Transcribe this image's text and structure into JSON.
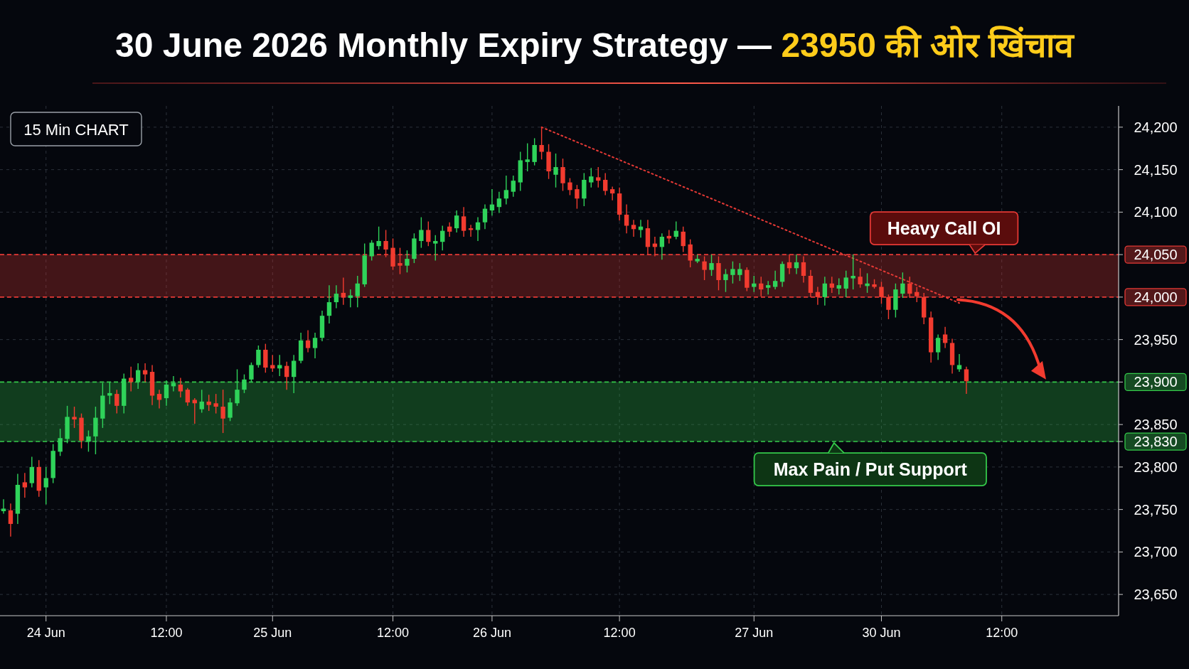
{
  "chart_data": {
    "type": "candlestick",
    "title": "30 June 2026 Monthly Expiry Strategy — 23950 की ओर खिंचाव",
    "annotations": [
      "15 Min CHART"
    ],
    "categories": [
      null,
      null,
      null,
      null,
      null,
      null,
      "24 Jun",
      null,
      null,
      null,
      null,
      null,
      null,
      null,
      null,
      null,
      null,
      null,
      null,
      null,
      null,
      null,
      null,
      "12:00",
      null,
      null,
      null,
      null,
      null,
      null,
      null,
      null,
      null,
      null,
      null,
      null,
      null,
      null,
      "25 Jun",
      null,
      null,
      null,
      null,
      null,
      null,
      null,
      null,
      null,
      null,
      null,
      null,
      null,
      null,
      null,
      null,
      "12:00",
      null,
      null,
      null,
      null,
      null,
      null,
      null,
      null,
      null,
      null,
      null,
      null,
      null,
      "26 Jun",
      null,
      null,
      null,
      null,
      null,
      null,
      null,
      null,
      null,
      null,
      null,
      null,
      null,
      null,
      null,
      null,
      null,
      "12:00",
      null,
      null,
      null,
      null,
      null,
      null,
      null,
      null,
      null,
      null,
      null,
      null,
      null,
      null,
      null,
      null,
      null,
      null,
      "27 Jun",
      null,
      null,
      null,
      null,
      null,
      null,
      null,
      null,
      null,
      null,
      null,
      null,
      null,
      null,
      null,
      null,
      null,
      "30 Jun",
      null,
      null,
      null,
      null,
      null,
      null,
      null,
      null,
      null,
      null,
      null,
      null,
      null,
      null,
      null,
      null,
      "12:00",
      null,
      null,
      null,
      null,
      null,
      null,
      null,
      null,
      null,
      null,
      null,
      null,
      null,
      null,
      null,
      null
    ],
    "ohlc": [
      [
        23748,
        23762,
        23745,
        23751
      ],
      [
        23749,
        23757,
        23718,
        23733
      ],
      [
        23745,
        23792,
        23733,
        23779
      ],
      [
        23782,
        23793,
        23764,
        23776
      ],
      [
        23781,
        23812,
        23776,
        23800
      ],
      [
        23800,
        23808,
        23765,
        23772
      ],
      [
        23776,
        23800,
        23756,
        23787
      ],
      [
        23787,
        23827,
        23781,
        23819
      ],
      [
        23818,
        23845,
        23813,
        23834
      ],
      [
        23833,
        23872,
        23828,
        23859
      ],
      [
        23859,
        23871,
        23846,
        23856
      ],
      [
        23858,
        23863,
        23822,
        23831
      ],
      [
        23830,
        23843,
        23818,
        23836
      ],
      [
        23836,
        23871,
        23815,
        23858
      ],
      [
        23857,
        23899,
        23846,
        23884
      ],
      [
        23884,
        23900,
        23874,
        23887
      ],
      [
        23886,
        23891,
        23863,
        23872
      ],
      [
        23872,
        23910,
        23863,
        23904
      ],
      [
        23905,
        23918,
        23889,
        23900
      ],
      [
        23900,
        23922,
        23892,
        23914
      ],
      [
        23914,
        23922,
        23900,
        23909
      ],
      [
        23912,
        23920,
        23873,
        23884
      ],
      [
        23886,
        23891,
        23869,
        23879
      ],
      [
        23881,
        23902,
        23872,
        23897
      ],
      [
        23895,
        23907,
        23889,
        23899
      ],
      [
        23897,
        23905,
        23882,
        23889
      ],
      [
        23891,
        23893,
        23872,
        23876
      ],
      [
        23879,
        23881,
        23851,
        23875
      ],
      [
        23868,
        23891,
        23864,
        23877
      ],
      [
        23877,
        23885,
        23866,
        23873
      ],
      [
        23875,
        23886,
        23863,
        23871
      ],
      [
        23871,
        23891,
        23840,
        23857
      ],
      [
        23858,
        23881,
        23854,
        23876
      ],
      [
        23875,
        23915,
        23872,
        23891
      ],
      [
        23891,
        23909,
        23887,
        23903
      ],
      [
        23903,
        23923,
        23900,
        23920
      ],
      [
        23920,
        23943,
        23917,
        23938
      ],
      [
        23938,
        23945,
        23911,
        23917
      ],
      [
        23920,
        23932,
        23912,
        23916
      ],
      [
        23916,
        23932,
        23907,
        23920
      ],
      [
        23919,
        23924,
        23891,
        23906
      ],
      [
        23906,
        23932,
        23887,
        23925
      ],
      [
        23925,
        23958,
        23922,
        23949
      ],
      [
        23949,
        23961,
        23935,
        23940
      ],
      [
        23940,
        23958,
        23928,
        23952
      ],
      [
        23952,
        23984,
        23948,
        23978
      ],
      [
        23978,
        24014,
        23969,
        23994
      ],
      [
        23994,
        24014,
        23987,
        24004
      ],
      [
        24005,
        24023,
        23991,
        24000
      ],
      [
        23999,
        24009,
        23988,
        24002
      ],
      [
        24001,
        24025,
        23988,
        24016
      ],
      [
        24015,
        24063,
        24012,
        24049
      ],
      [
        24048,
        24067,
        24043,
        24064
      ],
      [
        24060,
        24083,
        24056,
        24066
      ],
      [
        24066,
        24079,
        24047,
        24056
      ],
      [
        24058,
        24069,
        24032,
        24036
      ],
      [
        24040,
        24058,
        24027,
        24037
      ],
      [
        24037,
        24055,
        24029,
        24045
      ],
      [
        24045,
        24075,
        24040,
        24069
      ],
      [
        24066,
        24094,
        24058,
        24079
      ],
      [
        24079,
        24089,
        24060,
        24065
      ],
      [
        24063,
        24073,
        24043,
        24066
      ],
      [
        24065,
        24084,
        24055,
        24078
      ],
      [
        24083,
        24088,
        24071,
        24077
      ],
      [
        24081,
        24102,
        24076,
        24096
      ],
      [
        24095,
        24106,
        24071,
        24078
      ],
      [
        24081,
        24085,
        24071,
        24079
      ],
      [
        24079,
        24094,
        24066,
        24088
      ],
      [
        24088,
        24109,
        24080,
        24104
      ],
      [
        24102,
        24127,
        24096,
        24109
      ],
      [
        24106,
        24124,
        24099,
        24116
      ],
      [
        24116,
        24143,
        24109,
        24126
      ],
      [
        24124,
        24143,
        24118,
        24137
      ],
      [
        24135,
        24171,
        24125,
        24161
      ],
      [
        24159,
        24181,
        24148,
        24162
      ],
      [
        24159,
        24187,
        24155,
        24179
      ],
      [
        24179,
        24200,
        24162,
        24171
      ],
      [
        24171,
        24180,
        24139,
        24148
      ],
      [
        24144,
        24169,
        24129,
        24153
      ],
      [
        24153,
        24163,
        24125,
        24134
      ],
      [
        24135,
        24140,
        24120,
        24126
      ],
      [
        24127,
        24132,
        24104,
        24116
      ],
      [
        24116,
        24146,
        24107,
        24138
      ],
      [
        24135,
        24152,
        24129,
        24142
      ],
      [
        24141,
        24153,
        24129,
        24137
      ],
      [
        24138,
        24146,
        24120,
        24125
      ],
      [
        24127,
        24130,
        24114,
        24122
      ],
      [
        24122,
        24129,
        24090,
        24097
      ],
      [
        24097,
        24109,
        24075,
        24084
      ],
      [
        24085,
        24091,
        24071,
        24080
      ],
      [
        24079,
        24091,
        24070,
        24083
      ],
      [
        24081,
        24091,
        24050,
        24059
      ],
      [
        24063,
        24071,
        24048,
        24059
      ],
      [
        24059,
        24075,
        24044,
        24071
      ],
      [
        24072,
        24079,
        24063,
        24069
      ],
      [
        24071,
        24089,
        24068,
        24078
      ],
      [
        24077,
        24083,
        24053,
        24060
      ],
      [
        24062,
        24068,
        24035,
        24043
      ],
      [
        24042,
        24050,
        24040,
        24045
      ],
      [
        24042,
        24048,
        24020,
        24032
      ],
      [
        24032,
        24050,
        24025,
        24040
      ],
      [
        24040,
        24048,
        24008,
        24020
      ],
      [
        24020,
        24033,
        24006,
        24027
      ],
      [
        24026,
        24042,
        24016,
        24033
      ],
      [
        24026,
        24040,
        24019,
        24033
      ],
      [
        24032,
        24035,
        24007,
        24011
      ],
      [
        24012,
        24025,
        24006,
        24016
      ],
      [
        24016,
        24024,
        24001,
        24009
      ],
      [
        24011,
        24019,
        24003,
        24014
      ],
      [
        24012,
        24031,
        24009,
        24019
      ],
      [
        24018,
        24042,
        24012,
        24039
      ],
      [
        24041,
        24050,
        24027,
        24034
      ],
      [
        24034,
        24050,
        24027,
        24041
      ],
      [
        24041,
        24048,
        24017,
        24025
      ],
      [
        24025,
        24032,
        24000,
        24005
      ],
      [
        24006,
        24012,
        23991,
        24000
      ],
      [
        24000,
        24024,
        23990,
        24016
      ],
      [
        24016,
        24024,
        24005,
        24011
      ],
      [
        24010,
        24022,
        24003,
        24014
      ],
      [
        24010,
        24031,
        24000,
        24023
      ],
      [
        24022,
        24050,
        24009,
        24025
      ],
      [
        24024,
        24034,
        24011,
        24015
      ],
      [
        24013,
        24028,
        24005,
        24016
      ],
      [
        24015,
        24021,
        24010,
        24012
      ],
      [
        24012,
        24018,
        23992,
        24000
      ],
      [
        24000,
        24003,
        23974,
        23985
      ],
      [
        23985,
        24016,
        23976,
        24009
      ],
      [
        24004,
        24029,
        23999,
        24016
      ],
      [
        24016,
        24024,
        23999,
        24004
      ],
      [
        24006,
        24012,
        23994,
        24001
      ],
      [
        24000,
        24005,
        23968,
        23976
      ],
      [
        23976,
        23983,
        23923,
        23935
      ],
      [
        23935,
        23956,
        23926,
        23952
      ],
      [
        23956,
        23965,
        23940,
        23946
      ],
      [
        23946,
        23951,
        23910,
        23920
      ],
      [
        23915,
        23933,
        23912,
        23920
      ],
      [
        23915,
        23918,
        23886,
        23901
      ],
      null,
      null,
      null,
      null,
      null,
      null,
      null,
      null,
      null,
      null,
      null,
      null,
      null,
      null,
      null,
      null,
      null,
      null,
      null,
      null,
      null
    ],
    "series": [
      {
        "type": "line",
        "values": [
          null,
          null,
          null,
          null,
          null,
          null,
          null,
          null,
          null,
          null,
          null,
          null,
          null,
          null,
          null,
          null,
          null,
          null,
          null,
          null,
          null,
          null,
          null,
          null,
          null,
          null,
          null,
          null,
          null,
          null,
          null,
          null,
          null,
          null,
          null,
          null,
          null,
          null,
          null,
          null,
          null,
          null,
          null,
          null,
          null,
          null,
          null,
          null,
          null,
          null,
          null,
          null,
          null,
          null,
          null,
          null,
          null,
          null,
          null,
          null,
          null,
          null,
          null,
          null,
          null,
          null,
          null,
          null,
          null,
          null,
          null,
          null,
          null,
          null,
          null,
          null,
          24200,
          null,
          null,
          null,
          null,
          null,
          null,
          null,
          null,
          null,
          null,
          null,
          null,
          null,
          null,
          null,
          null,
          null,
          null,
          null,
          null,
          null,
          null,
          null,
          null,
          null,
          null,
          null,
          null,
          null,
          null,
          null,
          null,
          null,
          null,
          null,
          null,
          null,
          null,
          null,
          null,
          null,
          null,
          null,
          null,
          null,
          null,
          null,
          null,
          null,
          null,
          null,
          null,
          null,
          null,
          null,
          null,
          null,
          null,
          23993,
          null,
          null,
          null,
          null,
          null,
          null,
          null,
          null,
          null,
          null,
          null,
          null,
          null,
          null,
          null,
          null,
          null,
          null,
          null,
          null,
          null,
          null
        ],
        "color": "#e53935",
        "line_style": "dotted"
      }
    ],
    "bands": [
      {
        "axis": "y",
        "from": 24000,
        "to": 24050,
        "label": "Heavy Call OI",
        "color": "#e53935"
      },
      {
        "axis": "y",
        "from": 23830,
        "to": 23900,
        "label": "Max Pain / Put Support",
        "color": "#34c94a"
      }
    ],
    "ylim": [
      23625,
      24225
    ],
    "yticks": [
      {
        "value": 23650,
        "label": "23,650"
      },
      {
        "value": 23700,
        "label": "23,700"
      },
      {
        "value": 23750,
        "label": "23,750"
      },
      {
        "value": 23800,
        "label": "23,800"
      },
      {
        "value": 23830,
        "label": "23,830"
      },
      {
        "value": 23850,
        "label": "23,850"
      },
      {
        "value": 23900,
        "label": "23,900"
      },
      {
        "value": 23950,
        "label": "23,950"
      },
      {
        "value": 24000,
        "label": "24,000"
      },
      {
        "value": 24050,
        "label": "24,050"
      },
      {
        "value": 24100,
        "label": "24,100"
      },
      {
        "value": 24150,
        "label": "24,150"
      },
      {
        "value": 24200,
        "label": "24,200"
      }
    ],
    "grid": true
  }
}
